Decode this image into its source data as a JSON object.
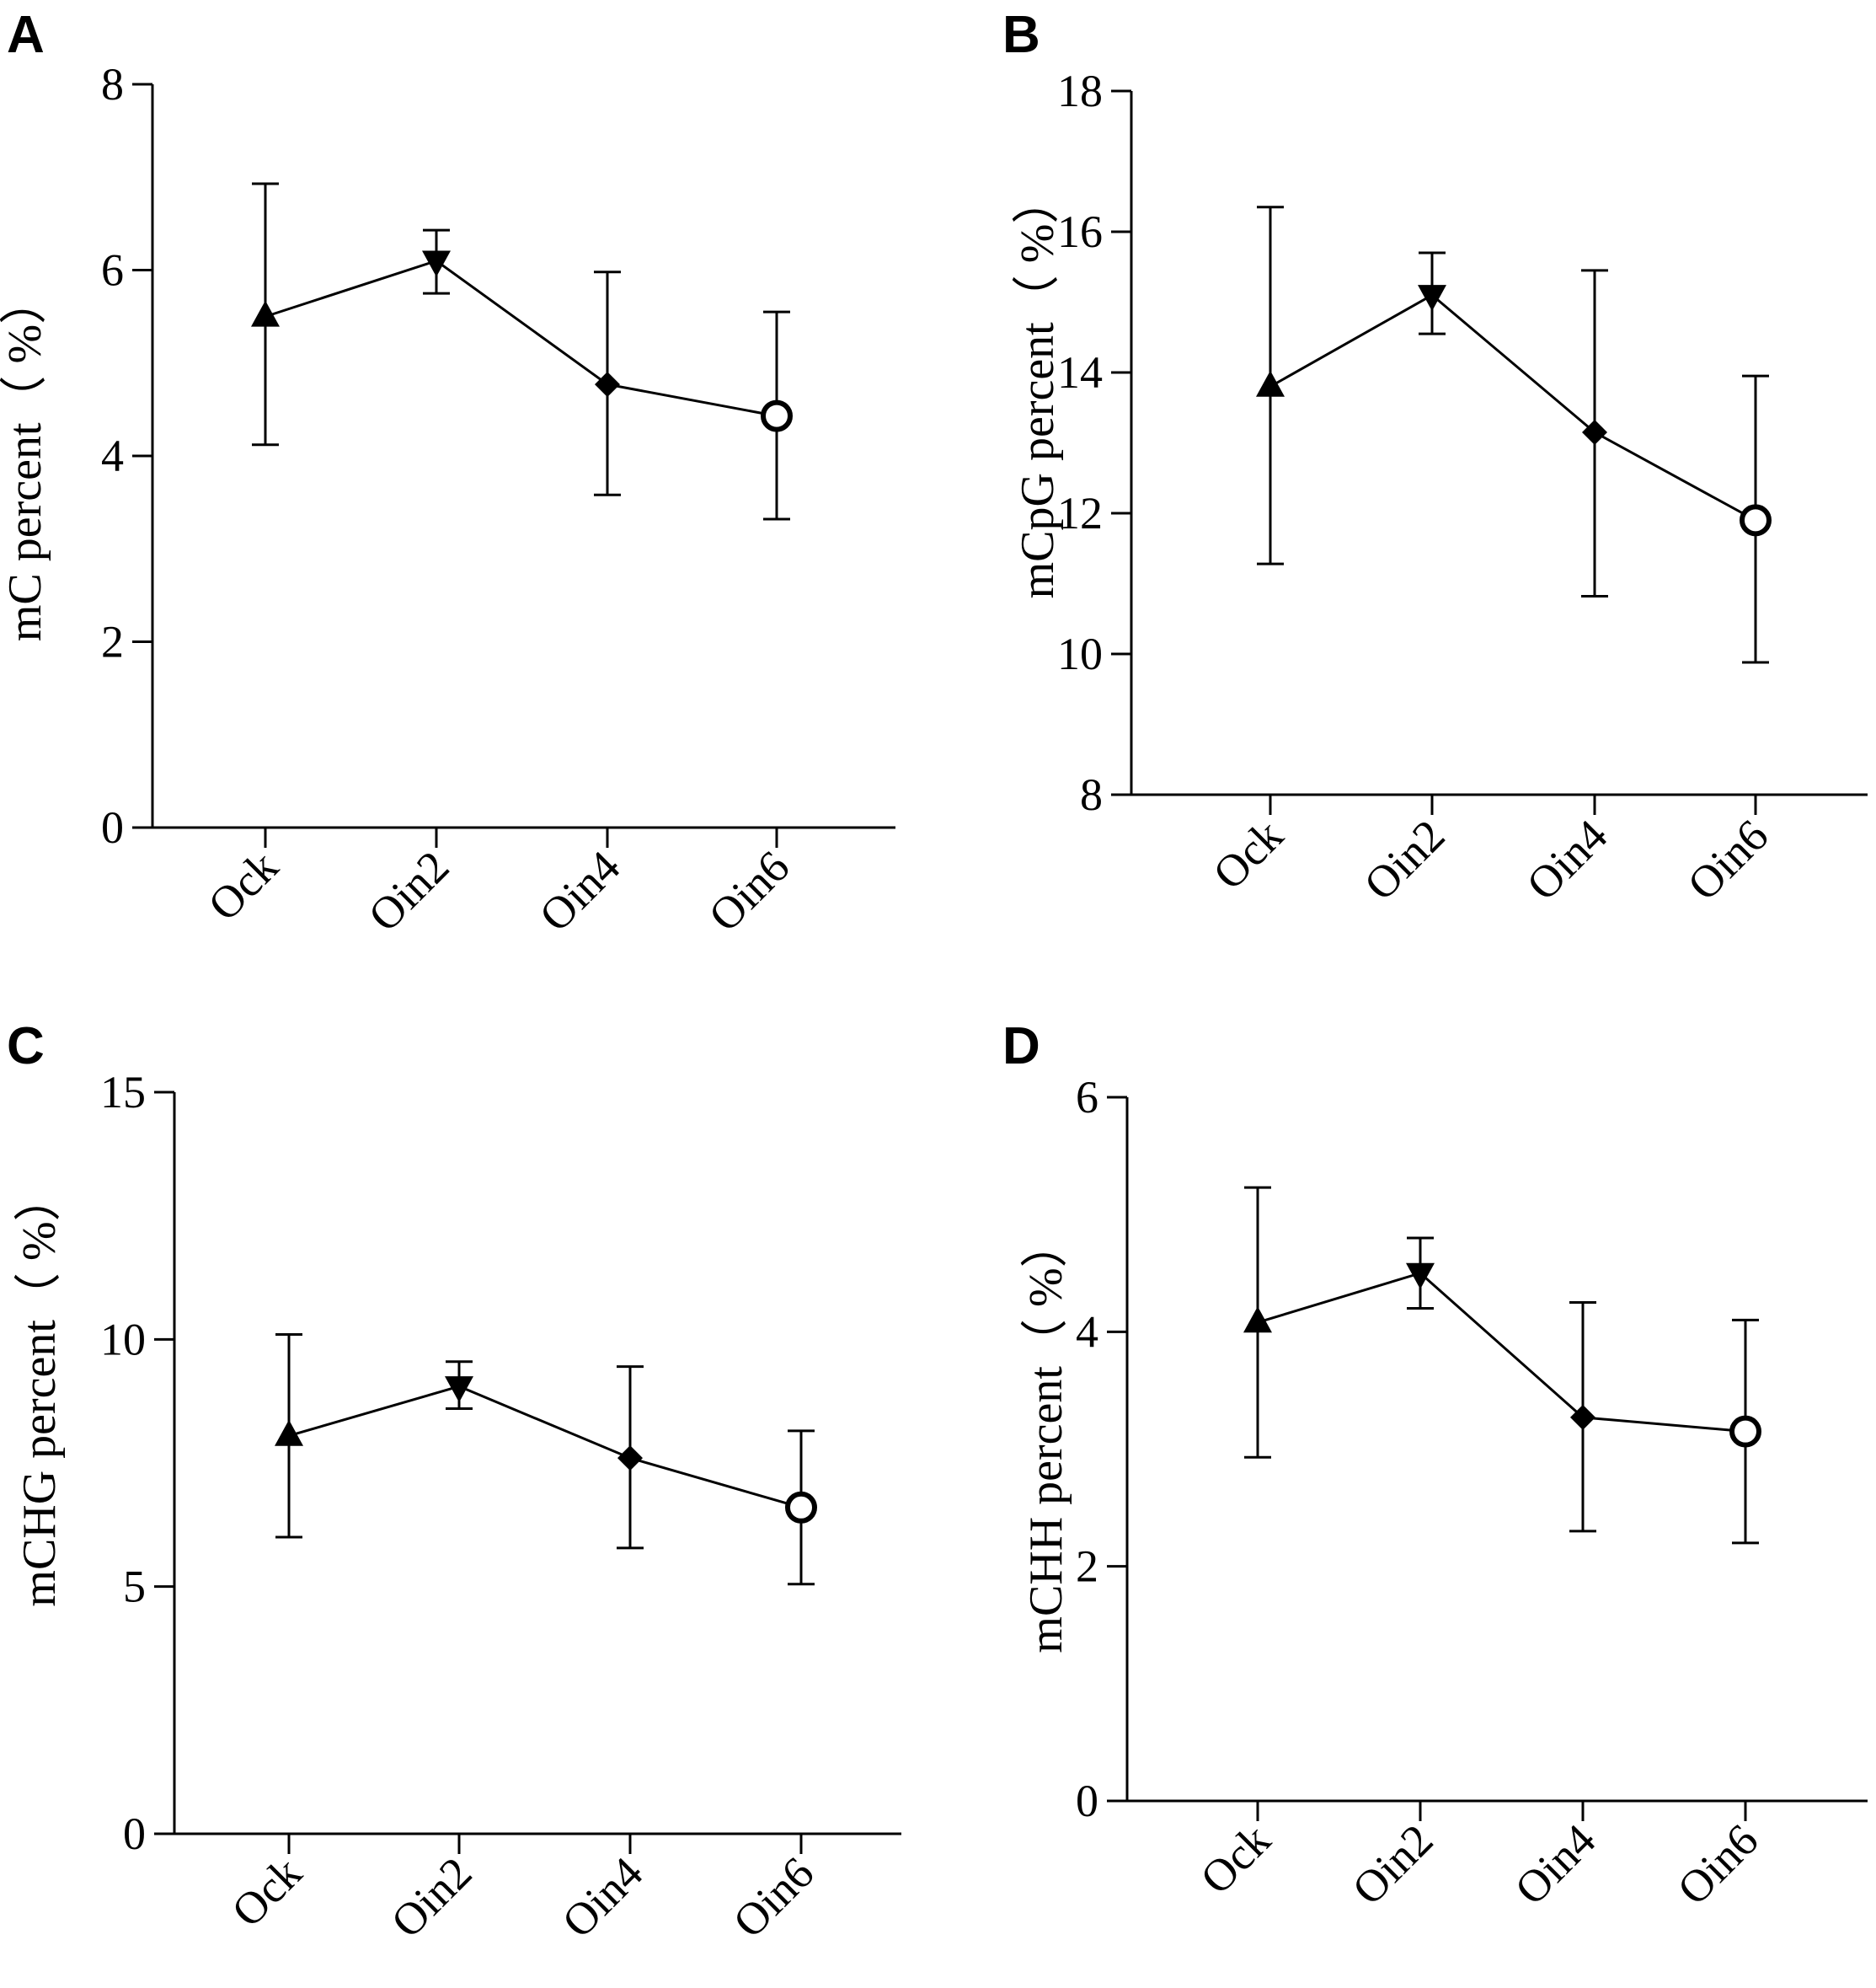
{
  "chart_data": [
    {
      "panel": "A",
      "type": "line",
      "categories": [
        "Ock",
        "Oin2",
        "Oin4",
        "Oin6"
      ],
      "markers": [
        "triangle-up",
        "triangle-down",
        "diamond",
        "circle-open"
      ],
      "values": [
        5.5,
        6.1,
        4.77,
        4.43
      ],
      "err_upper": [
        6.93,
        6.43,
        5.98,
        5.55
      ],
      "err_lower": [
        4.12,
        5.75,
        3.58,
        3.32
      ],
      "ylabel": "mC percent（ %）",
      "ylim": [
        0,
        8
      ],
      "yticks": [
        0,
        2,
        4,
        6,
        8
      ]
    },
    {
      "panel": "B",
      "type": "line",
      "categories": [
        "Ock",
        "Oin2",
        "Oin4",
        "Oin6"
      ],
      "markers": [
        "triangle-up",
        "triangle-down",
        "diamond",
        "circle-open"
      ],
      "values": [
        13.8,
        15.1,
        13.15,
        11.9
      ],
      "err_upper": [
        16.35,
        15.7,
        15.45,
        13.95
      ],
      "err_lower": [
        11.28,
        14.55,
        10.82,
        9.88
      ],
      "ylabel": "mCpG  percent（ %）",
      "ylim": [
        8,
        18
      ],
      "yticks": [
        8,
        10,
        12,
        14,
        16,
        18
      ]
    },
    {
      "panel": "C",
      "type": "line",
      "categories": [
        "Ock",
        "Oin2",
        "Oin4",
        "Oin6"
      ],
      "markers": [
        "triangle-up",
        "triangle-down",
        "diamond",
        "circle-open"
      ],
      "values": [
        8.05,
        9.05,
        7.6,
        6.6
      ],
      "err_upper": [
        10.1,
        9.55,
        9.45,
        8.15
      ],
      "err_lower": [
        6.0,
        8.6,
        5.78,
        5.05
      ],
      "ylabel": "mCHG  percent（ %）",
      "ylim": [
        0,
        15
      ],
      "yticks": [
        0,
        5,
        10,
        15
      ]
    },
    {
      "panel": "D",
      "type": "line",
      "categories": [
        "Ock",
        "Oin2",
        "Oin4",
        "Oin6"
      ],
      "markers": [
        "triangle-up",
        "triangle-down",
        "diamond",
        "circle-open"
      ],
      "values": [
        4.08,
        4.5,
        3.27,
        3.15
      ],
      "err_upper": [
        5.23,
        4.8,
        4.25,
        4.1
      ],
      "err_lower": [
        2.93,
        4.2,
        2.3,
        2.2
      ],
      "ylabel": "mCHH  percent（ %）",
      "ylim": [
        0,
        6
      ],
      "yticks": [
        0,
        2,
        4,
        6
      ]
    }
  ]
}
